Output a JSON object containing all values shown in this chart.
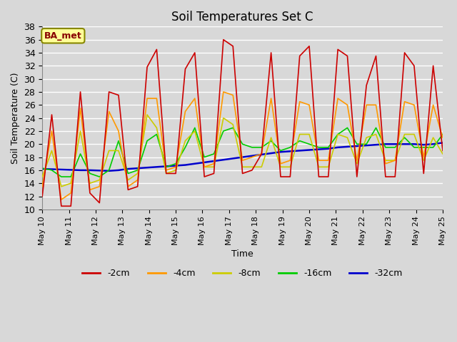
{
  "title": "Soil Temperatures Set C",
  "xlabel": "Time",
  "ylabel": "Soil Temperature (C)",
  "ylim": [
    10,
    38
  ],
  "yticks": [
    10,
    12,
    14,
    16,
    18,
    20,
    22,
    24,
    26,
    28,
    30,
    32,
    34,
    36,
    38
  ],
  "background_color": "#d8d8d8",
  "plot_bg_color": "#d8d8d8",
  "legend_labels": [
    "-2cm",
    "-4cm",
    "-8cm",
    "-16cm",
    "-32cm"
  ],
  "legend_colors": [
    "#cc0000",
    "#ff9900",
    "#cccc00",
    "#00cc00",
    "#0000cc"
  ],
  "annotation_text": "BA_met",
  "annotation_bg": "#ffff99",
  "annotation_border": "#888800",
  "annotation_text_color": "#880000",
  "series_colors": [
    "#cc0000",
    "#ff9900",
    "#cccc00",
    "#00cc00",
    "#0000cc"
  ],
  "series_linewidths": [
    1.2,
    1.2,
    1.2,
    1.2,
    1.8
  ],
  "data_2cm": [
    12.0,
    24.5,
    10.5,
    10.5,
    28.0,
    12.5,
    11.0,
    28.0,
    27.5,
    13.0,
    13.5,
    31.8,
    34.5,
    15.5,
    15.5,
    31.5,
    34.0,
    15.0,
    15.5,
    36.0,
    35.0,
    15.5,
    16.0,
    18.5,
    34.0,
    15.0,
    15.0,
    33.5,
    35.0,
    15.0,
    15.0,
    34.5,
    33.5,
    15.0,
    29.0,
    33.5,
    15.0,
    15.0,
    34.0,
    32.0,
    15.5,
    32.0,
    19.0
  ],
  "data_4cm": [
    13.5,
    22.0,
    11.5,
    12.5,
    25.5,
    13.0,
    13.5,
    25.0,
    22.0,
    13.5,
    14.5,
    27.0,
    27.0,
    16.0,
    16.5,
    25.0,
    27.0,
    16.5,
    17.0,
    28.0,
    27.5,
    17.5,
    18.0,
    18.5,
    27.0,
    17.0,
    17.5,
    26.5,
    26.0,
    17.5,
    17.5,
    27.0,
    26.0,
    17.5,
    26.0,
    26.0,
    17.0,
    17.5,
    26.5,
    26.0,
    18.0,
    26.0,
    21.0
  ],
  "data_8cm": [
    15.0,
    19.0,
    13.5,
    14.0,
    22.0,
    14.0,
    14.5,
    19.0,
    19.0,
    14.5,
    15.5,
    24.5,
    22.5,
    15.5,
    16.0,
    20.5,
    22.0,
    16.5,
    16.5,
    24.0,
    23.0,
    16.5,
    16.5,
    16.5,
    21.0,
    16.5,
    16.5,
    21.5,
    21.5,
    16.5,
    16.5,
    21.5,
    21.0,
    17.0,
    21.0,
    21.5,
    17.5,
    17.5,
    21.5,
    21.5,
    17.5,
    21.0,
    18.5
  ],
  "data_16cm": [
    16.3,
    16.0,
    15.0,
    15.0,
    18.5,
    15.5,
    15.0,
    16.0,
    20.5,
    15.5,
    16.0,
    20.5,
    21.5,
    16.5,
    17.0,
    19.5,
    22.5,
    18.0,
    18.5,
    22.0,
    22.5,
    20.0,
    19.5,
    19.5,
    20.5,
    19.0,
    19.5,
    20.5,
    20.0,
    19.5,
    19.5,
    21.5,
    22.5,
    20.0,
    20.0,
    22.5,
    19.5,
    19.5,
    21.0,
    19.5,
    19.5,
    19.5,
    21.5
  ],
  "data_32cm": [
    16.2,
    16.15,
    16.1,
    16.05,
    16.0,
    16.0,
    15.95,
    15.9,
    16.0,
    16.2,
    16.3,
    16.4,
    16.5,
    16.6,
    16.7,
    16.8,
    17.0,
    17.2,
    17.4,
    17.6,
    17.8,
    18.0,
    18.2,
    18.4,
    18.6,
    18.8,
    18.9,
    19.0,
    19.1,
    19.2,
    19.3,
    19.5,
    19.6,
    19.7,
    19.8,
    19.9,
    20.0,
    20.0,
    20.0,
    20.0,
    19.9,
    20.0,
    20.2
  ],
  "xtick_days": [
    10,
    11,
    12,
    13,
    14,
    15,
    16,
    17,
    18,
    19,
    20,
    21,
    22,
    23,
    24,
    25
  ],
  "xtick_fontsize": 8,
  "ytick_fontsize": 9,
  "title_fontsize": 12,
  "label_fontsize": 9,
  "legend_fontsize": 9
}
